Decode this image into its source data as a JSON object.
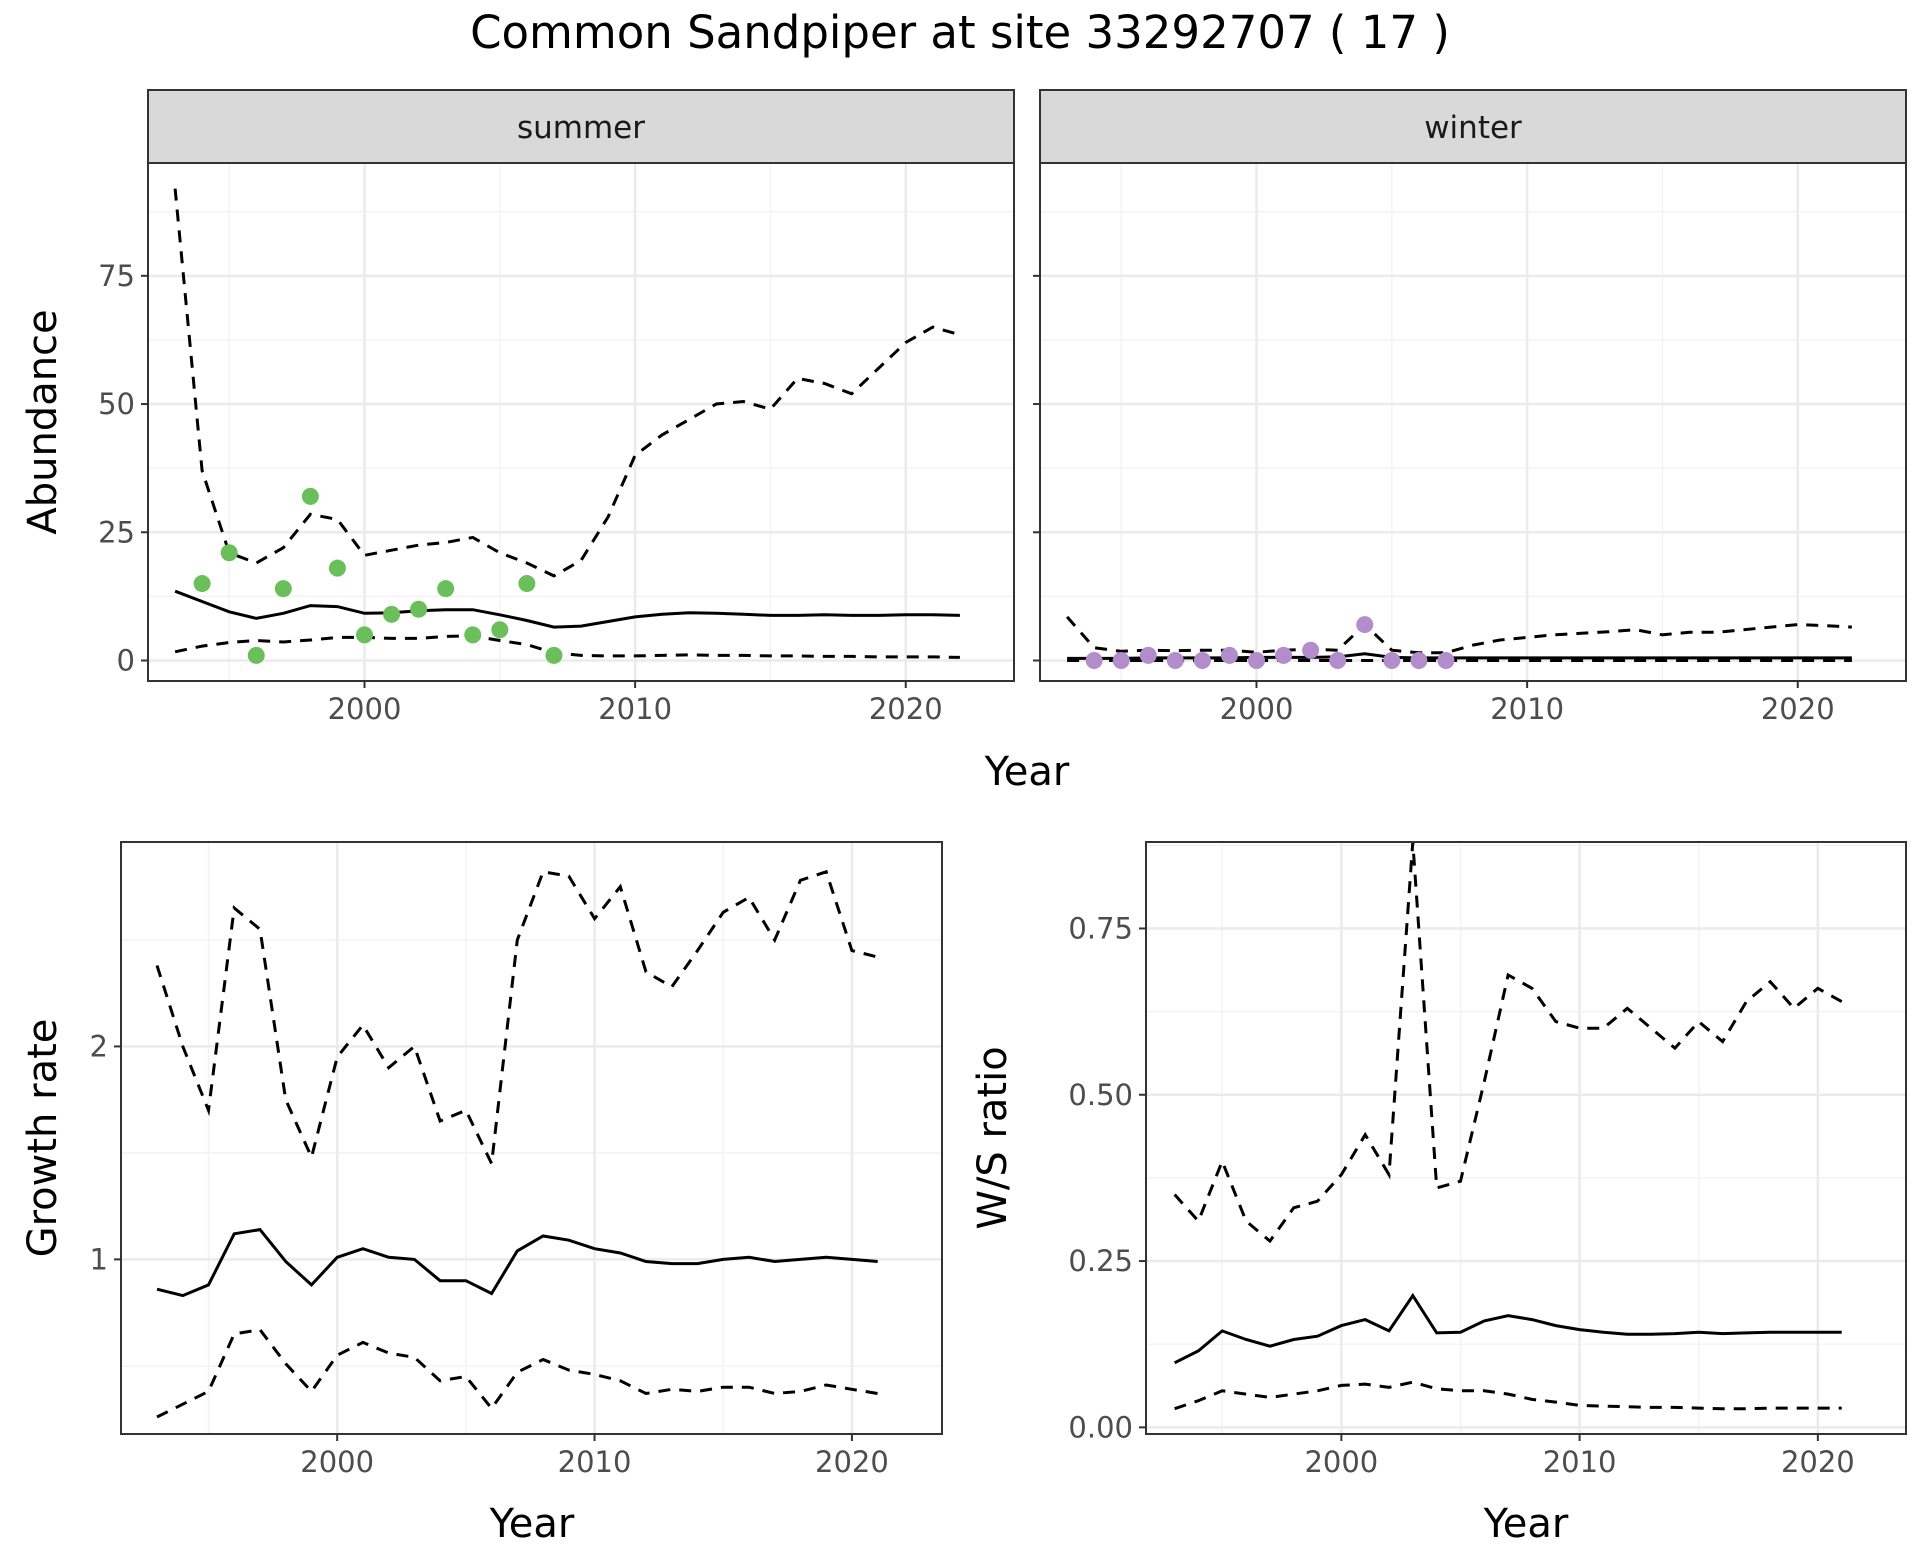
{
  "title": "Common Sandpiper at site 33292707 ( 17 )",
  "colors": {
    "summer_points": "#6abf5a",
    "winter_points": "#b28ccb",
    "strip_bg": "#d9d9d9",
    "grid_major": "#ebebeb",
    "line": "#000000"
  },
  "chart_data": [
    {
      "type": "line",
      "panel": "abundance",
      "ylabel": "Abundance",
      "xlabel": "Year",
      "facets": [
        "summer",
        "winter"
      ],
      "xlim": [
        1992,
        2024
      ],
      "ylim": [
        -4,
        97
      ],
      "xticks": [
        2000,
        2010,
        2020
      ],
      "yticks": [
        0,
        25,
        50,
        75
      ],
      "ytick_labels": [
        "0",
        "25",
        "50",
        "75"
      ],
      "series": {
        "summer": {
          "x": [
            1993,
            1994,
            1995,
            1996,
            1997,
            1998,
            1999,
            2000,
            2001,
            2002,
            2003,
            2004,
            2005,
            2006,
            2007,
            2008,
            2009,
            2010,
            2011,
            2012,
            2013,
            2014,
            2015,
            2016,
            2017,
            2018,
            2019,
            2020,
            2021,
            2022
          ],
          "fit": [
            13.5,
            11.5,
            9.5,
            8.2,
            9.2,
            10.7,
            10.5,
            9.2,
            9.3,
            9.7,
            9.9,
            9.9,
            8.9,
            7.8,
            6.5,
            6.7,
            7.6,
            8.5,
            9.0,
            9.3,
            9.2,
            9.0,
            8.8,
            8.8,
            8.9,
            8.8,
            8.8,
            8.9,
            8.9,
            8.8
          ],
          "upper": [
            92,
            37,
            21,
            19,
            22,
            28.5,
            27.5,
            20.5,
            21.5,
            22.5,
            23,
            24,
            21,
            19,
            16.5,
            19.5,
            28,
            40,
            44,
            47,
            50,
            50.5,
            49,
            55,
            54,
            52,
            57,
            62,
            65,
            63.5
          ],
          "lower": [
            1.7,
            2.8,
            3.5,
            3.9,
            3.6,
            4.0,
            4.5,
            4.5,
            4.3,
            4.3,
            4.7,
            4.8,
            3.9,
            3.1,
            1.5,
            1.0,
            0.9,
            0.9,
            1.0,
            1.1,
            1.0,
            1.0,
            0.9,
            0.9,
            0.8,
            0.8,
            0.7,
            0.7,
            0.7,
            0.6
          ],
          "obs_x": [
            1994,
            1995,
            1996,
            1997,
            1998,
            1999,
            2000,
            2001,
            2002,
            2003,
            2004,
            2005,
            2006,
            2007
          ],
          "obs_y": [
            15,
            21,
            1,
            14,
            32,
            18,
            5,
            9,
            10,
            14,
            5,
            6,
            15,
            1
          ]
        },
        "winter": {
          "x": [
            1993,
            1994,
            1995,
            1996,
            1997,
            1998,
            1999,
            2000,
            2001,
            2002,
            2003,
            2004,
            2005,
            2006,
            2007,
            2008,
            2009,
            2010,
            2011,
            2012,
            2013,
            2014,
            2015,
            2016,
            2017,
            2018,
            2019,
            2020,
            2021,
            2022
          ],
          "fit": [
            0.4,
            0.4,
            0.4,
            0.5,
            0.5,
            0.5,
            0.5,
            0.6,
            0.6,
            0.6,
            0.7,
            1.3,
            0.6,
            0.5,
            0.5,
            0.5,
            0.5,
            0.5,
            0.5,
            0.5,
            0.5,
            0.5,
            0.5,
            0.5,
            0.5,
            0.5,
            0.5,
            0.5,
            0.5,
            0.5
          ],
          "upper": [
            8.5,
            2.5,
            1.8,
            2.0,
            1.9,
            2.0,
            2.0,
            1.6,
            2.0,
            2.2,
            2.0,
            7.0,
            2.0,
            1.5,
            1.5,
            3.0,
            4.0,
            4.5,
            5.0,
            5.3,
            5.6,
            6.0,
            5.0,
            5.5,
            5.5,
            6.0,
            6.5,
            7.0,
            6.8,
            6.5
          ],
          "lower": [
            0.0,
            0.0,
            0.0,
            0.0,
            0.0,
            0.0,
            0.0,
            0.0,
            0.0,
            0.0,
            0.0,
            0.0,
            0.0,
            0.0,
            0.0,
            0.0,
            0.0,
            0.0,
            0.0,
            0.0,
            0.0,
            0.0,
            0.0,
            0.0,
            0.0,
            0.0,
            0.0,
            0.0,
            0.0,
            0.0
          ],
          "obs_x": [
            1994,
            1995,
            1996,
            1997,
            1998,
            1999,
            2000,
            2001,
            2002,
            2003,
            2004,
            2005,
            2006,
            2007
          ],
          "obs_y": [
            0,
            0,
            1,
            0,
            0,
            1,
            0,
            1,
            2,
            0,
            7,
            0,
            0,
            0
          ]
        }
      }
    },
    {
      "type": "line",
      "panel": "growth",
      "ylabel": "Growth rate",
      "xlabel": "Year",
      "xlim": [
        1991.6,
        2023.5
      ],
      "ylim": [
        0.18,
        2.96
      ],
      "xticks": [
        2000,
        2010,
        2020
      ],
      "yticks": [
        1,
        2
      ],
      "ytick_labels": [
        "1",
        "2"
      ],
      "minor_y": [
        0.5,
        1.5,
        2.5
      ],
      "series": {
        "x": [
          1993,
          1994,
          1995,
          1996,
          1997,
          1998,
          1999,
          2000,
          2001,
          2002,
          2003,
          2004,
          2005,
          2006,
          2007,
          2008,
          2009,
          2010,
          2011,
          2012,
          2013,
          2014,
          2015,
          2016,
          2017,
          2018,
          2019,
          2020,
          2021
        ],
        "fit": [
          0.86,
          0.83,
          0.88,
          1.12,
          1.14,
          0.99,
          0.88,
          1.01,
          1.05,
          1.01,
          1.0,
          0.9,
          0.9,
          0.84,
          1.04,
          1.11,
          1.09,
          1.05,
          1.03,
          0.99,
          0.98,
          0.98,
          1.0,
          1.01,
          0.99,
          1.0,
          1.01,
          1.0,
          0.99
        ],
        "upper": [
          2.38,
          2.0,
          1.7,
          2.65,
          2.55,
          1.75,
          1.48,
          1.95,
          2.1,
          1.9,
          2.0,
          1.65,
          1.7,
          1.45,
          2.5,
          2.82,
          2.8,
          2.6,
          2.75,
          2.35,
          2.28,
          2.45,
          2.63,
          2.7,
          2.5,
          2.78,
          2.82,
          2.45,
          2.42
        ],
        "lower": [
          0.26,
          0.32,
          0.38,
          0.65,
          0.67,
          0.51,
          0.38,
          0.55,
          0.61,
          0.56,
          0.54,
          0.43,
          0.45,
          0.3,
          0.47,
          0.53,
          0.48,
          0.46,
          0.43,
          0.37,
          0.39,
          0.38,
          0.4,
          0.4,
          0.37,
          0.38,
          0.41,
          0.39,
          0.37
        ]
      }
    },
    {
      "type": "line",
      "panel": "ratio",
      "ylabel": "W/S ratio",
      "xlabel": "Year",
      "xlim": [
        1991.8,
        2023.7
      ],
      "ylim": [
        -0.01,
        0.88
      ],
      "xticks": [
        2000,
        2010,
        2020
      ],
      "yticks": [
        0.0,
        0.25,
        0.5,
        0.75
      ],
      "ytick_labels": [
        "0.00",
        "0.25",
        "0.50",
        "0.75"
      ],
      "minor_y": [
        0.125,
        0.375,
        0.625,
        0.875
      ],
      "series": {
        "x": [
          1993,
          1994,
          1995,
          1996,
          1997,
          1998,
          1999,
          2000,
          2001,
          2002,
          2003,
          2004,
          2005,
          2006,
          2007,
          2008,
          2009,
          2010,
          2011,
          2012,
          2013,
          2014,
          2015,
          2016,
          2017,
          2018,
          2019,
          2020,
          2021
        ],
        "fit": [
          0.097,
          0.115,
          0.145,
          0.132,
          0.122,
          0.132,
          0.137,
          0.153,
          0.162,
          0.145,
          0.198,
          0.142,
          0.143,
          0.16,
          0.168,
          0.162,
          0.153,
          0.147,
          0.143,
          0.14,
          0.14,
          0.141,
          0.143,
          0.141,
          0.142,
          0.143,
          0.143,
          0.143,
          0.143
        ],
        "upper": [
          0.35,
          0.31,
          0.4,
          0.31,
          0.28,
          0.33,
          0.34,
          0.38,
          0.44,
          0.38,
          0.88,
          0.36,
          0.37,
          0.52,
          0.68,
          0.66,
          0.61,
          0.6,
          0.6,
          0.63,
          0.6,
          0.57,
          0.61,
          0.58,
          0.64,
          0.67,
          0.63,
          0.66,
          0.64
        ],
        "lower": [
          0.028,
          0.04,
          0.055,
          0.05,
          0.045,
          0.05,
          0.055,
          0.063,
          0.065,
          0.06,
          0.068,
          0.058,
          0.055,
          0.055,
          0.05,
          0.042,
          0.038,
          0.033,
          0.032,
          0.031,
          0.03,
          0.03,
          0.029,
          0.028,
          0.028,
          0.029,
          0.029,
          0.029,
          0.029
        ]
      }
    }
  ]
}
